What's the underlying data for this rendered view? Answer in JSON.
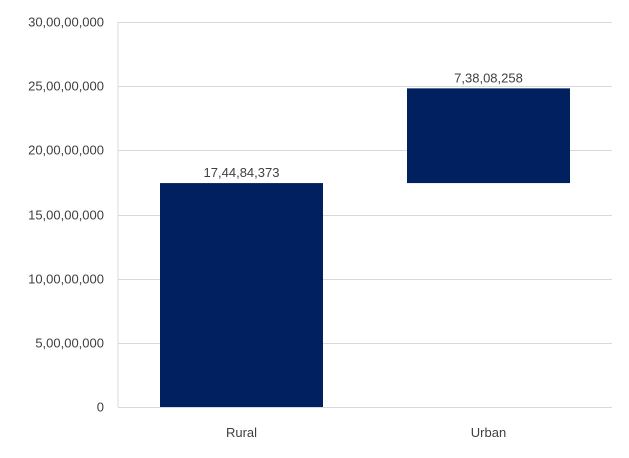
{
  "chart_data": {
    "type": "bar",
    "subtype": "waterfall",
    "title": "",
    "xlabel": "",
    "ylabel": "",
    "categories": [
      "Rural",
      "Urban"
    ],
    "values": [
      174484373,
      73808258
    ],
    "bar_bottoms": [
      0,
      174484373
    ],
    "bar_tops": [
      174484373,
      248292631
    ],
    "data_labels": [
      "17,44,84,373",
      "7,38,08,258"
    ],
    "ylim": [
      0,
      300000000
    ],
    "yticks": [
      0,
      50000000,
      100000000,
      150000000,
      200000000,
      250000000,
      300000000
    ],
    "ytick_labels": [
      "0",
      "5,00,00,000",
      "10,00,00,000",
      "15,00,00,000",
      "20,00,00,000",
      "25,00,00,000",
      "30,00,00,000"
    ],
    "grid": true,
    "legend": "none",
    "colors": {
      "bar": "#002060",
      "grid": "#d9d9d9",
      "text": "#3f3f3f"
    }
  }
}
